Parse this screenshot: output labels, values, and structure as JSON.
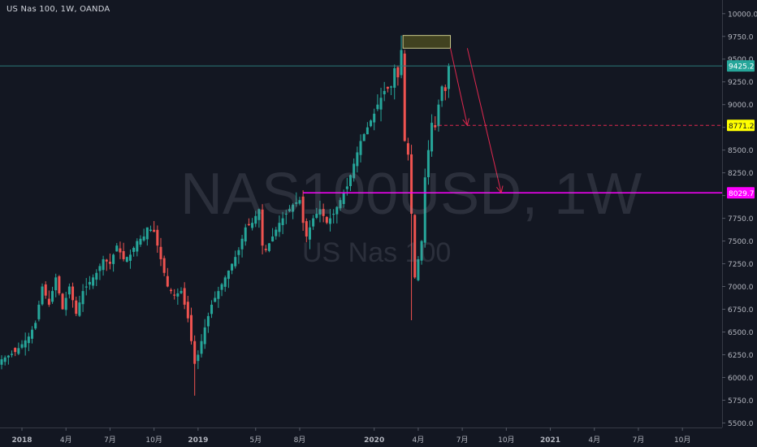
{
  "header": {
    "symbol_line": "US Nas 100, 1W, OANDA"
  },
  "watermark": {
    "main": "NAS100USD, 1W",
    "sub": "US Nas 100"
  },
  "colors": {
    "background": "#131722",
    "bull": "#26a69a",
    "bear": "#ef5350",
    "current_line": "#2a7a7a",
    "target_line": "#ff00ff",
    "arrow": "#e0284f",
    "zone_fill": "#4a4a20",
    "zone_border": "#c9c98a",
    "axis_text": "#b2b5be"
  },
  "chart_data": {
    "type": "candlestick",
    "timeframe": "1W",
    "ylim": [
      5450,
      10150
    ],
    "y_ticks": [
      "10000.0",
      "9750.0",
      "9500.0",
      "9250.0",
      "9000.0",
      "8750.0",
      "8500.0",
      "8250.0",
      "8000.0",
      "7750.0",
      "7500.0",
      "7250.0",
      "7000.0",
      "6750.0",
      "6500.0",
      "6250.0",
      "6000.0",
      "5750.0",
      "5500.0"
    ],
    "x_ticks": [
      {
        "label": "2018",
        "week": 6
      },
      {
        "label": "4月",
        "week": 19
      },
      {
        "label": "7月",
        "week": 32
      },
      {
        "label": "10月",
        "week": 45
      },
      {
        "label": "2019",
        "week": 58
      },
      {
        "label": "5月",
        "week": 75
      },
      {
        "label": "8月",
        "week": 88
      },
      {
        "label": "2020",
        "week": 110
      },
      {
        "label": "4月",
        "week": 123
      },
      {
        "label": "7月",
        "week": 136
      },
      {
        "label": "10月",
        "week": 149
      },
      {
        "label": "2021",
        "week": 162
      },
      {
        "label": "4月",
        "week": 175
      },
      {
        "label": "7月",
        "week": 188
      },
      {
        "label": "10月",
        "week": 201
      }
    ],
    "price_labels": [
      {
        "value": 9425.2,
        "text": "9425.2",
        "bg": "#26a69a",
        "fg": "#ffffff"
      },
      {
        "value": 8771.2,
        "text": "8771.2",
        "bg": "#ffff00",
        "fg": "#131722"
      },
      {
        "value": 8029.7,
        "text": "8029.7",
        "bg": "#ff00ff",
        "fg": "#ffffff"
      }
    ],
    "close_path": [
      [
        0,
        6200
      ],
      [
        4,
        6280
      ],
      [
        8,
        6450
      ],
      [
        10,
        6600
      ],
      [
        12,
        7000
      ],
      [
        14,
        6800
      ],
      [
        16,
        7100
      ],
      [
        18,
        6750
      ],
      [
        20,
        7000
      ],
      [
        22,
        6700
      ],
      [
        24,
        6950
      ],
      [
        26,
        7050
      ],
      [
        28,
        7150
      ],
      [
        30,
        7300
      ],
      [
        32,
        7250
      ],
      [
        34,
        7450
      ],
      [
        36,
        7300
      ],
      [
        38,
        7350
      ],
      [
        40,
        7500
      ],
      [
        42,
        7550
      ],
      [
        43,
        7650
      ],
      [
        45,
        7600
      ],
      [
        47,
        7300
      ],
      [
        49,
        7000
      ],
      [
        51,
        6900
      ],
      [
        53,
        6950
      ],
      [
        55,
        6650
      ],
      [
        57,
        6150
      ],
      [
        58,
        6250
      ],
      [
        60,
        6550
      ],
      [
        62,
        6800
      ],
      [
        64,
        6950
      ],
      [
        66,
        7100
      ],
      [
        68,
        7250
      ],
      [
        70,
        7400
      ],
      [
        72,
        7650
      ],
      [
        74,
        7700
      ],
      [
        76,
        7850
      ],
      [
        77,
        7450
      ],
      [
        78,
        7400
      ],
      [
        80,
        7550
      ],
      [
        82,
        7700
      ],
      [
        84,
        7800
      ],
      [
        86,
        7900
      ],
      [
        88,
        7950
      ],
      [
        89,
        7700
      ],
      [
        90,
        7550
      ],
      [
        92,
        7750
      ],
      [
        94,
        7850
      ],
      [
        96,
        7700
      ],
      [
        98,
        7800
      ],
      [
        100,
        7950
      ],
      [
        102,
        8100
      ],
      [
        104,
        8350
      ],
      [
        106,
        8600
      ],
      [
        108,
        8750
      ],
      [
        110,
        8900
      ],
      [
        111,
        9000
      ],
      [
        113,
        9150
      ],
      [
        115,
        9200
      ],
      [
        116,
        9400
      ],
      [
        117,
        9300
      ],
      [
        118,
        9600
      ],
      [
        119,
        8600
      ],
      [
        120,
        8450
      ],
      [
        121,
        7800
      ],
      [
        122,
        7100
      ],
      [
        123,
        7300
      ],
      [
        124,
        7500
      ],
      [
        125,
        8200
      ],
      [
        126,
        8500
      ],
      [
        127,
        8800
      ],
      [
        128,
        8750
      ],
      [
        129,
        9000
      ],
      [
        130,
        9200
      ],
      [
        131,
        9150
      ],
      [
        132,
        9425.2
      ]
    ],
    "wick_extremes": [
      {
        "week": 57,
        "low": 5800
      },
      {
        "week": 121,
        "low": 6630
      },
      {
        "week": 118,
        "high": 9760
      },
      {
        "week": 45,
        "high": 7720
      }
    ],
    "current_price": 9425.2,
    "annotations": {
      "resistance_zone": {
        "week_start": 118.5,
        "week_end": 132.5,
        "price_low": 9620,
        "price_high": 9760
      },
      "dashed_target": {
        "price": 8771.2,
        "week_start": 129,
        "style": "dashed"
      },
      "solid_target": {
        "price": 8029.7,
        "week_start": 89,
        "style": "solid"
      },
      "arrows": [
        {
          "from": [
            132.5,
            9620
          ],
          "to": [
            137.5,
            8771.2
          ]
        },
        {
          "from": [
            137.5,
            9620
          ],
          "to": [
            147.5,
            8029.7
          ]
        }
      ]
    }
  }
}
